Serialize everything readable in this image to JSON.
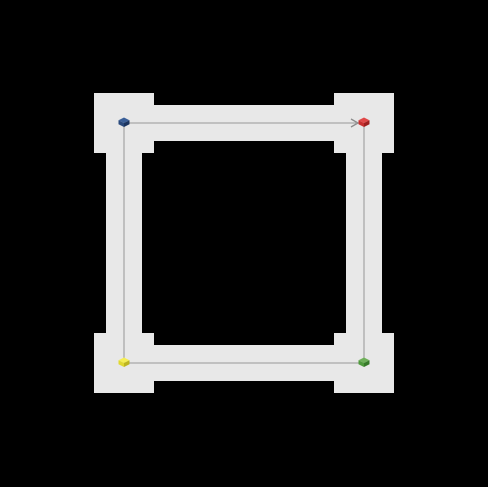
{
  "colors": {
    "background": "#000000",
    "floor": "#e8e8e8",
    "path_line": "#a9a9a9",
    "arrow_head": "#8c8c8c"
  },
  "nodes": [
    {
      "id": "top-left",
      "color_name": "blue",
      "top": "#3a5f98",
      "left": "#2a4a7d",
      "right": "#1c3560",
      "icon": "blue-cube-icon"
    },
    {
      "id": "top-right",
      "color_name": "red",
      "top": "#e04848",
      "left": "#c83030",
      "right": "#9e2020",
      "icon": "red-cube-icon"
    },
    {
      "id": "bottom-right",
      "color_name": "green",
      "top": "#6fb05a",
      "left": "#4f9a3c",
      "right": "#377a2a",
      "icon": "green-cube-icon"
    },
    {
      "id": "bottom-left",
      "color_name": "yellow",
      "top": "#f5ee55",
      "left": "#e0d832",
      "right": "#bdb520",
      "icon": "yellow-cube-icon"
    }
  ],
  "paths": [
    {
      "from": "top-left",
      "to": "top-right",
      "directed": true
    },
    {
      "from": "top-left",
      "to": "bottom-left",
      "directed": false
    },
    {
      "from": "bottom-left",
      "to": "bottom-right",
      "directed": false
    },
    {
      "from": "top-right",
      "to": "bottom-right",
      "directed": false
    }
  ]
}
